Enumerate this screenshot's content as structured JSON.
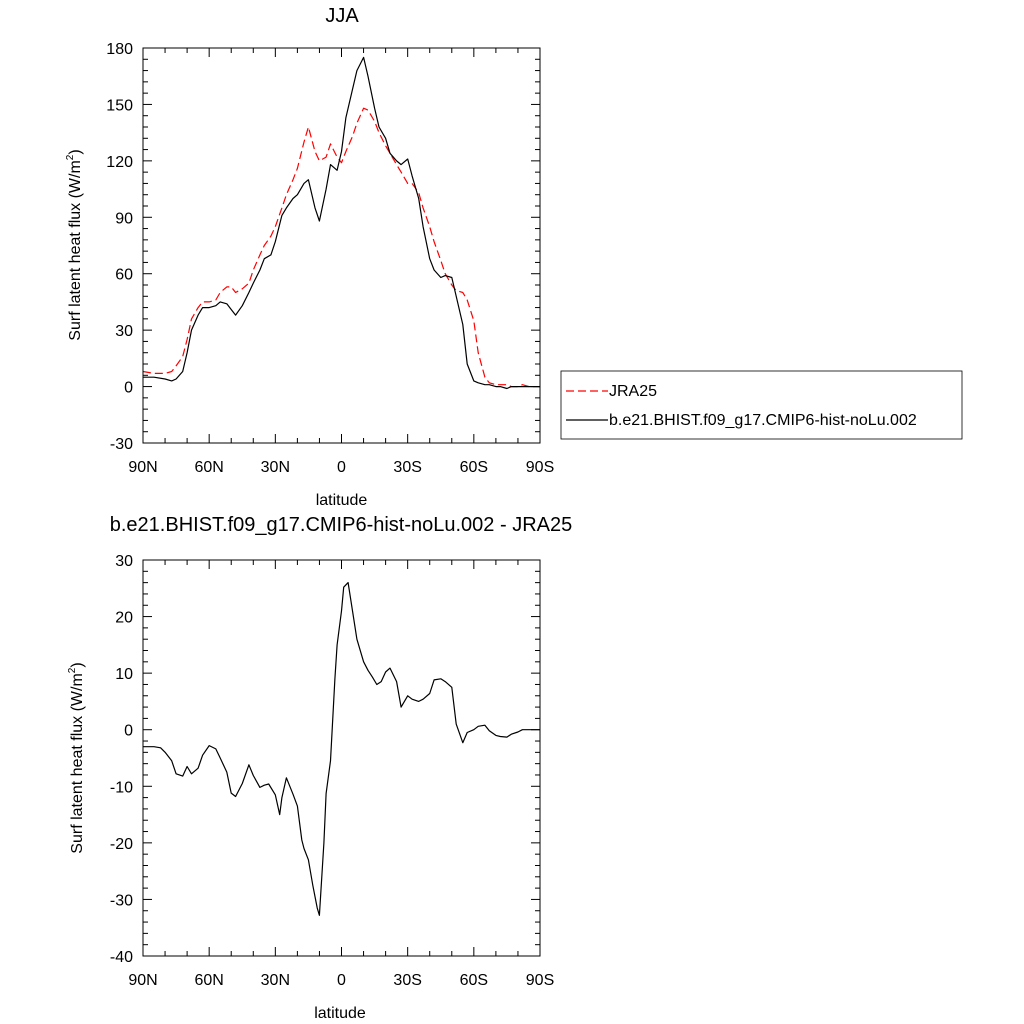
{
  "chart_data": [
    {
      "type": "line",
      "title": "JJA",
      "xlabel": "latitude",
      "ylabel": "Surf latent heat flux (W/m",
      "ylabel_sup": "2",
      "ylabel_close": ")",
      "xlim": [
        90,
        -90
      ],
      "ylim": [
        -30,
        180
      ],
      "xticks": [
        90,
        60,
        30,
        0,
        -30,
        -60,
        -90
      ],
      "xtick_labels": [
        "90N",
        "60N",
        "30N",
        "0",
        "30S",
        "60S",
        "90S"
      ],
      "yticks": [
        -30,
        0,
        30,
        60,
        90,
        120,
        150,
        180
      ],
      "ytick_labels": [
        "-30",
        "0",
        "30",
        "60",
        "90",
        "120",
        "150",
        "180"
      ],
      "legend_position": "right",
      "series": [
        {
          "name": "JRA25",
          "color": "#ff0000",
          "dash": "dashed",
          "x": [
            90,
            85,
            80,
            77,
            75,
            72,
            70,
            68,
            65,
            63,
            60,
            57,
            55,
            52,
            50,
            48,
            45,
            42,
            40,
            37,
            35,
            32,
            30,
            27,
            25,
            22,
            20,
            17,
            15,
            12,
            10,
            7,
            5,
            2,
            0,
            -2,
            -5,
            -7,
            -10,
            -12,
            -15,
            -17,
            -20,
            -22,
            -25,
            -27,
            -30,
            -32,
            -35,
            -37,
            -40,
            -42,
            -45,
            -47,
            -50,
            -52,
            -55,
            -57,
            -60,
            -62,
            -65,
            -67,
            -70,
            -72,
            -75,
            -77,
            -80,
            -82,
            -85,
            -87,
            -90
          ],
          "y": [
            8,
            7,
            7,
            8,
            11,
            16,
            25,
            36,
            42,
            45,
            45,
            46,
            50,
            53,
            53,
            50,
            52,
            55,
            62,
            70,
            75,
            80,
            85,
            95,
            102,
            110,
            116,
            130,
            138,
            125,
            120,
            122,
            129,
            122,
            119,
            125,
            133,
            140,
            148,
            147,
            141,
            135,
            128,
            124,
            118,
            114,
            108,
            108,
            103,
            95,
            85,
            77,
            67,
            60,
            54,
            51,
            50,
            46,
            35,
            18,
            5,
            2,
            1,
            1,
            1,
            0,
            0,
            1,
            0,
            0,
            0
          ]
        },
        {
          "name": "b.e21.BHIST.f09_g17.CMIP6-hist-noLu.002",
          "color": "#000000",
          "dash": "solid",
          "x": [
            90,
            85,
            80,
            77,
            75,
            72,
            70,
            68,
            65,
            63,
            60,
            57,
            55,
            52,
            50,
            48,
            45,
            42,
            40,
            37,
            35,
            32,
            30,
            27,
            25,
            22,
            20,
            17,
            15,
            12,
            10,
            7,
            5,
            2,
            0,
            -2,
            -5,
            -7,
            -10,
            -12,
            -15,
            -17,
            -20,
            -22,
            -25,
            -27,
            -30,
            -32,
            -35,
            -37,
            -40,
            -42,
            -45,
            -47,
            -50,
            -52,
            -55,
            -57,
            -60,
            -62,
            -65,
            -67,
            -70,
            -72,
            -75,
            -77,
            -80,
            -82,
            -85,
            -87,
            -90
          ],
          "y": [
            5,
            5,
            4,
            3,
            4,
            8,
            18,
            30,
            38,
            42,
            42,
            43,
            45,
            44,
            41,
            38,
            43,
            50,
            55,
            62,
            68,
            70,
            77,
            91,
            95,
            100,
            102,
            108,
            110,
            95,
            88,
            105,
            118,
            115,
            125,
            143,
            158,
            168,
            175,
            165,
            148,
            138,
            132,
            124,
            120,
            118,
            121,
            112,
            100,
            85,
            68,
            62,
            58,
            59,
            58,
            48,
            33,
            12,
            3,
            2,
            1,
            1,
            0,
            0,
            -1,
            0,
            0,
            0,
            0,
            0,
            0
          ]
        }
      ]
    },
    {
      "type": "line",
      "title": "b.e21.BHIST.f09_g17.CMIP6-hist-noLu.002 - JRA25",
      "xlabel": "latitude",
      "ylabel": "Surf latent heat flux (W/m",
      "ylabel_sup": "2",
      "ylabel_close": ")",
      "xlim": [
        90,
        -90
      ],
      "ylim": [
        -40,
        30
      ],
      "xticks": [
        90,
        60,
        30,
        0,
        -30,
        -60,
        -90
      ],
      "xtick_labels": [
        "90N",
        "60N",
        "30N",
        "0",
        "30S",
        "60S",
        "90S"
      ],
      "yticks": [
        -40,
        -30,
        -20,
        -10,
        0,
        10,
        20,
        30
      ],
      "ytick_labels": [
        "-40",
        "-30",
        "-20",
        "-10",
        "0",
        "10",
        "20",
        "30"
      ],
      "series": [
        {
          "color": "#000000",
          "dash": "solid",
          "x": [
            90,
            85,
            82,
            80,
            77,
            75,
            72,
            70,
            68,
            65,
            63,
            60,
            57,
            55,
            52,
            50,
            48,
            45,
            42,
            40,
            37,
            35,
            33,
            30,
            28,
            27,
            25,
            22,
            20,
            18,
            17,
            15,
            13,
            11,
            10,
            8,
            7,
            5,
            3,
            2,
            0,
            -1,
            -3,
            -5,
            -7,
            -10,
            -12,
            -14,
            -16,
            -18,
            -20,
            -22,
            -25,
            -27,
            -30,
            -32,
            -35,
            -37,
            -40,
            -42,
            -45,
            -47,
            -50,
            -52,
            -55,
            -57,
            -60,
            -62,
            -65,
            -67,
            -70,
            -72,
            -75,
            -77,
            -80,
            -82,
            -85,
            -87,
            -90
          ],
          "y": [
            -3,
            -3,
            -3.2,
            -4,
            -5.5,
            -7.8,
            -8.2,
            -6.5,
            -7.8,
            -6.8,
            -4.5,
            -2.8,
            -3.4,
            -5,
            -7.5,
            -11.2,
            -11.8,
            -9.5,
            -6.2,
            -8.1,
            -10.2,
            -9.8,
            -9.6,
            -11.5,
            -15,
            -12,
            -8.5,
            -11.4,
            -13.5,
            -19.5,
            -21,
            -23,
            -27.5,
            -31.5,
            -32.8,
            -20,
            -11.3,
            -5.5,
            9,
            15,
            21,
            25.2,
            26,
            21,
            16,
            12,
            10.5,
            9.3,
            8,
            8.5,
            10.2,
            10.9,
            8.5,
            4,
            6,
            5.4,
            5,
            5.4,
            6.4,
            8.8,
            9,
            8.5,
            7.5,
            1,
            -2.3,
            -0.5,
            0,
            0.6,
            0.8,
            -0.2,
            -1,
            -1.2,
            -1.3,
            -0.8,
            -0.4,
            0,
            0,
            0,
            0
          ]
        }
      ]
    }
  ]
}
